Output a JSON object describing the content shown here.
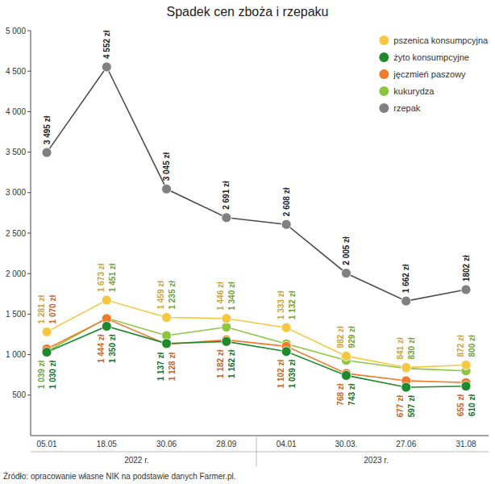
{
  "chart_data": {
    "type": "line",
    "title": "Spadek cen zboża i rzepaku",
    "categories": [
      "05.01",
      "18.05",
      "30.06",
      "28.09",
      "04.01",
      "30.03.",
      "27.06",
      "31.08"
    ],
    "x_groups": [
      {
        "label": "2022 r.",
        "start": 0,
        "end": 3
      },
      {
        "label": "2023 r.",
        "start": 4,
        "end": 7
      }
    ],
    "series": [
      {
        "name": "pszenica konsumpcyjna",
        "color": "#f5c842",
        "values": [
          1281,
          1673,
          1459,
          1446,
          1333,
          982,
          841,
          872
        ],
        "value_labels": [
          "1 281 zł",
          "1 673 zł",
          "1 459 zł",
          "1 446 zł",
          "1 333 zł",
          "982 zł",
          "841 zł",
          "872 zł"
        ]
      },
      {
        "name": "żyto konsumpcyjne",
        "color": "#1f8a2c",
        "values": [
          1030,
          1350,
          1137,
          1162,
          1039,
          743,
          597,
          610
        ],
        "value_labels": [
          "1 030 zł",
          "1 350 zł",
          "1 137 zł",
          "1 162 zł",
          "1 039 zł",
          "743 zł",
          "597 zł",
          "610 zł"
        ]
      },
      {
        "name": "jęczmień paszowy",
        "color": "#f07a2a",
        "values": [
          1070,
          1444,
          1128,
          1182,
          1102,
          768,
          677,
          655
        ],
        "value_labels": [
          "1 070 zł",
          "1 444 zł",
          "1 128 zł",
          "1 182 zł",
          "1 102 zł",
          "768 zł",
          "677 zł",
          "655 zł"
        ]
      },
      {
        "name": "kukurydza",
        "color": "#8cc63f",
        "values": [
          1039,
          1451,
          1235,
          1340,
          1132,
          929,
          830,
          800
        ],
        "value_labels": [
          "1 039 zł",
          "1 451 zł",
          "1 235 zł",
          "1 340 zł",
          "1 132 zł",
          "929 zł",
          "830 zł",
          "800 zł"
        ]
      },
      {
        "name": "rzepak",
        "color": "#808080",
        "values": [
          3495,
          4552,
          3045,
          2691,
          2608,
          2005,
          1662,
          1802
        ],
        "value_labels": [
          "3 495 zł",
          "4 552 zł",
          "3 045 zł",
          "2 691 zł",
          "2 608 zł",
          "2 005 zł",
          "1 662 zł",
          "1802 zł"
        ]
      }
    ],
    "ylim": [
      0,
      5000
    ],
    "yticks": [
      500,
      {
        "value": 1000,
        "label": "1 000"
      },
      {
        "value": 1500,
        "label": "1 500"
      },
      {
        "value": 2000,
        "label": "2 000"
      },
      {
        "value": 2500,
        "label": "2 500"
      },
      {
        "value": 3000,
        "label": "3 000"
      },
      {
        "value": 3500,
        "label": "3 500"
      },
      {
        "value": 4000,
        "label": "4 000"
      },
      {
        "value": 4500,
        "label": "4 500"
      },
      {
        "value": 5000,
        "label": "5 000"
      }
    ],
    "grid": false,
    "legend": "upper right",
    "data_labels": true,
    "marker": "circle",
    "source": "Źródło: opracowanie własne NIK na podstawie danych Farmer.pl."
  }
}
